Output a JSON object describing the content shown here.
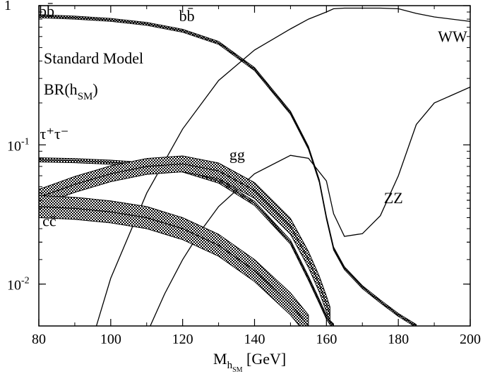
{
  "chart_data": {
    "type": "line",
    "title_lines": [
      "Standard Model",
      "BR(h",
      "SM",
      ")"
    ],
    "xlabel": {
      "main": "M",
      "sub1": "h",
      "sub2": "SM",
      "unit": " [GeV]"
    },
    "xlim": [
      80,
      200
    ],
    "ylim": [
      0.005,
      1
    ],
    "yscale": "log",
    "x_ticks": [
      {
        "value": 80,
        "label": "80"
      },
      {
        "value": 100,
        "label": "100"
      },
      {
        "value": 120,
        "label": "120"
      },
      {
        "value": 140,
        "label": "140"
      },
      {
        "value": 160,
        "label": "160"
      },
      {
        "value": 180,
        "label": "180"
      },
      {
        "value": 200,
        "label": "200"
      }
    ],
    "y_ticks": [
      {
        "value": 1,
        "base": "1",
        "exp": ""
      },
      {
        "value": 0.1,
        "base": "10",
        "exp": "-1"
      },
      {
        "value": 0.01,
        "base": "10",
        "exp": "-2"
      }
    ],
    "grid": false,
    "series": [
      {
        "name": "bb̄",
        "style": "band",
        "color": "#000000",
        "x": [
          80,
          90,
          100,
          110,
          120,
          130,
          140,
          150,
          155,
          158,
          160,
          162,
          165,
          170,
          175,
          180,
          185
        ],
        "y": [
          0.84,
          0.82,
          0.79,
          0.74,
          0.66,
          0.54,
          0.35,
          0.17,
          0.095,
          0.055,
          0.03,
          0.018,
          0.013,
          0.0095,
          0.0075,
          0.006,
          0.005
        ],
        "width": 0.025
      },
      {
        "name": "WW",
        "style": "line",
        "color": "#000000",
        "x": [
          96,
          100,
          110,
          120,
          130,
          140,
          150,
          155,
          160,
          162,
          165,
          170,
          175,
          180,
          185,
          190,
          200
        ],
        "y": [
          0.005,
          0.011,
          0.045,
          0.13,
          0.29,
          0.48,
          0.68,
          0.8,
          0.9,
          0.95,
          0.96,
          0.96,
          0.96,
          0.95,
          0.88,
          0.83,
          0.77
        ],
        "label_at": [
          191,
          0.55
        ]
      },
      {
        "name": "ZZ",
        "style": "line",
        "color": "#000000",
        "x": [
          111,
          115,
          120,
          125,
          130,
          140,
          150,
          155,
          160,
          162,
          165,
          170,
          175,
          180,
          185,
          190,
          200
        ],
        "y": [
          0.005,
          0.0085,
          0.015,
          0.024,
          0.036,
          0.062,
          0.084,
          0.08,
          0.055,
          0.032,
          0.022,
          0.023,
          0.031,
          0.06,
          0.14,
          0.2,
          0.26
        ],
        "label_at": [
          176,
          0.038
        ]
      },
      {
        "name": "τ⁺τ⁻",
        "style": "band",
        "color": "#000000",
        "x": [
          80,
          90,
          100,
          110,
          120,
          130,
          140,
          150,
          155,
          158,
          160,
          161,
          162
        ],
        "y": [
          0.078,
          0.077,
          0.075,
          0.072,
          0.066,
          0.055,
          0.038,
          0.02,
          0.011,
          0.0075,
          0.0058,
          0.0053,
          0.005
        ],
        "width": 0.035,
        "label_at": [
          80.3,
          0.11
        ]
      },
      {
        "name": "gg",
        "style": "band",
        "color": "#000000",
        "x": [
          80,
          90,
          100,
          110,
          120,
          130,
          140,
          150,
          155,
          158,
          160,
          161
        ],
        "y": [
          0.042,
          0.052,
          0.062,
          0.07,
          0.073,
          0.065,
          0.047,
          0.026,
          0.015,
          0.01,
          0.0072,
          0.006
        ],
        "width": 0.14,
        "label_at": [
          133,
          0.078
        ]
      },
      {
        "name": "cc̄",
        "style": "band",
        "color": "#000000",
        "x": [
          80,
          90,
          100,
          110,
          120,
          130,
          140,
          150,
          155
        ],
        "y": [
          0.036,
          0.035,
          0.033,
          0.03,
          0.025,
          0.019,
          0.0125,
          0.0072,
          0.005
        ],
        "width": 0.2,
        "label_at": [
          81,
          0.026
        ]
      }
    ]
  }
}
